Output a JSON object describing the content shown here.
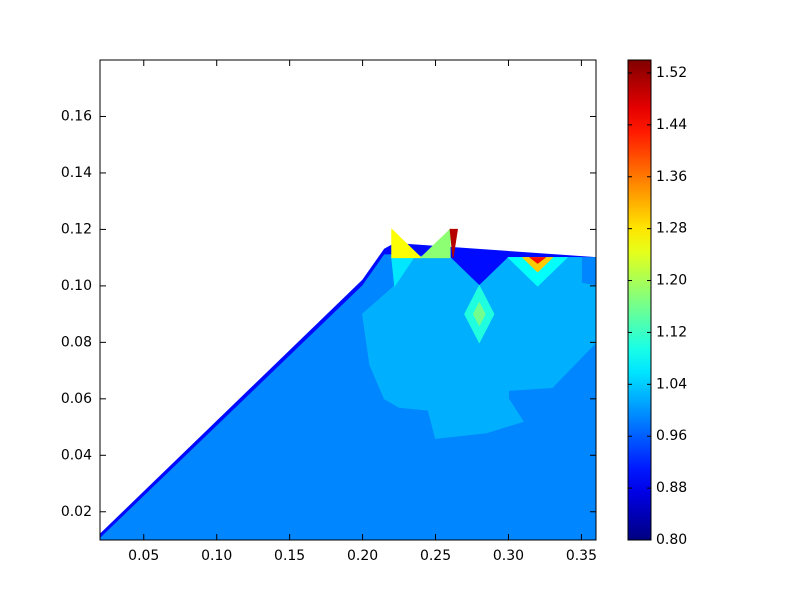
{
  "chart_data": {
    "type": "contour",
    "colormap": "jet",
    "xlim": [
      0.02,
      0.36
    ],
    "xticks": [
      0.05,
      {
        "value": 0.1,
        "label": "0.10"
      },
      0.15,
      {
        "value": 0.2,
        "label": "0.20"
      },
      0.25,
      {
        "value": 0.3,
        "label": "0.30"
      },
      0.35
    ],
    "ylim": [
      0.01,
      0.18
    ],
    "yticks": [
      0.02,
      0.04,
      0.06,
      0.08,
      {
        "value": 0.1,
        "label": "0.10"
      },
      0.12,
      0.14,
      0.16
    ],
    "clim": [
      0.8,
      1.54
    ],
    "cticks": [
      {
        "value": 0.8,
        "label": "0.80"
      },
      0.88,
      0.96,
      1.04,
      1.12,
      {
        "value": 1.2,
        "label": "1.20"
      },
      1.28,
      1.36,
      1.44,
      1.52
    ],
    "regions": [
      {
        "level": 0.9,
        "x": [
          0.02,
          0.02,
          0.2,
          0.215,
          0.222,
          0.36,
          0.36
        ],
        "y": [
          0.01,
          0.012,
          0.102,
          0.113,
          0.115,
          0.11,
          0.01
        ]
      },
      {
        "level": 0.99,
        "x": [
          0.02,
          0.02,
          0.2,
          0.215,
          0.222,
          0.26,
          0.28,
          0.3,
          0.36,
          0.36
        ],
        "y": [
          0.01,
          0.0105,
          0.1,
          0.111,
          0.111,
          0.11,
          0.1,
          0.11,
          0.11,
          0.01
        ]
      },
      {
        "level": 1.02,
        "x": [
          0.222,
          0.2,
          0.205,
          0.215,
          0.225,
          0.245,
          0.25,
          0.285,
          0.31,
          0.3,
          0.3,
          0.33,
          0.345,
          0.36,
          0.36,
          0.35,
          0.35,
          0.3,
          0.28,
          0.26,
          0.225
        ],
        "y": [
          0.1,
          0.09,
          0.072,
          0.06,
          0.057,
          0.056,
          0.046,
          0.048,
          0.052,
          0.06,
          0.063,
          0.064,
          0.072,
          0.08,
          0.1,
          0.101,
          0.11,
          0.11,
          0.1,
          0.11,
          0.11
        ]
      },
      {
        "level": 1.06,
        "x": [
          0.22,
          0.235,
          0.222
        ],
        "y": [
          0.11,
          0.11,
          0.1
        ]
      },
      {
        "level": 1.26,
        "x": [
          0.22,
          0.22,
          0.24
        ],
        "y": [
          0.12,
          0.11,
          0.11
        ]
      },
      {
        "level": 1.18,
        "x": [
          0.24,
          0.26,
          0.26
        ],
        "y": [
          0.11,
          0.12,
          0.11
        ]
      },
      {
        "level": 1.5,
        "x": [
          0.26,
          0.265,
          0.262
        ],
        "y": [
          0.12,
          0.12,
          0.11
        ]
      },
      {
        "level": 1.1,
        "x": [
          0.27,
          0.28,
          0.29,
          0.28
        ],
        "y": [
          0.09,
          0.1,
          0.09,
          0.08
        ]
      },
      {
        "level": 1.16,
        "x": [
          0.276,
          0.28,
          0.284,
          0.28
        ],
        "y": [
          0.09,
          0.094,
          0.09,
          0.086
        ]
      },
      {
        "level": 1.08,
        "x": [
          0.3,
          0.34,
          0.32
        ],
        "y": [
          0.11,
          0.11,
          0.1
        ]
      },
      {
        "level": 1.3,
        "x": [
          0.31,
          0.33,
          0.32
        ],
        "y": [
          0.11,
          0.11,
          0.105
        ]
      },
      {
        "level": 1.44,
        "x": [
          0.315,
          0.325,
          0.32
        ],
        "y": [
          0.11,
          0.11,
          0.108
        ]
      }
    ]
  }
}
